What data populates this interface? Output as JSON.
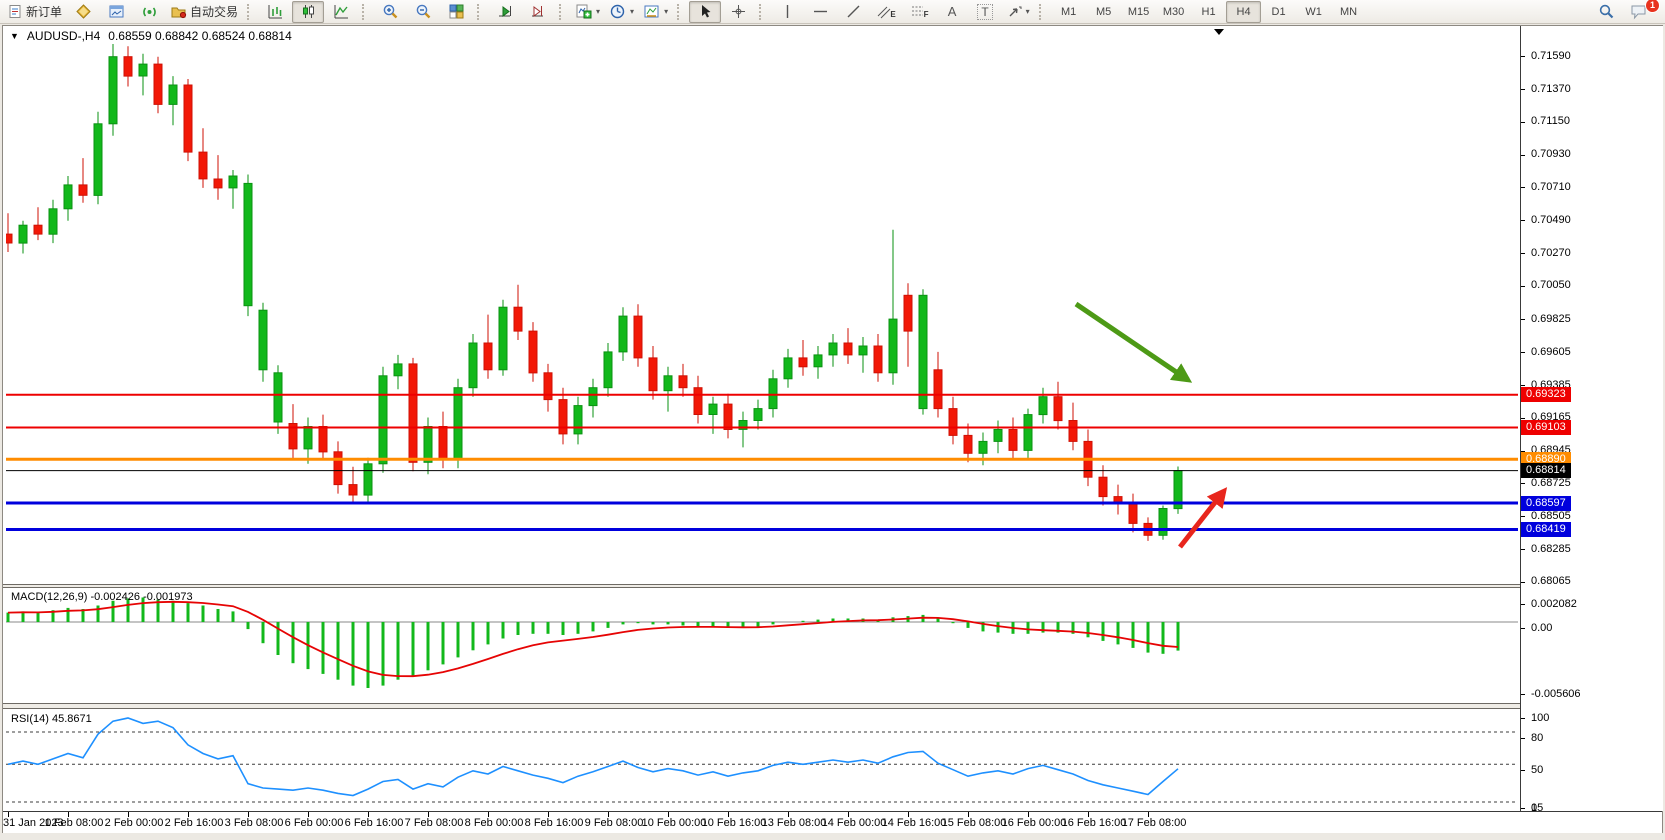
{
  "toolbar": {
    "new_order": "新订单",
    "autotrading": "自动交易",
    "timeframes": [
      "M1",
      "M5",
      "M15",
      "M30",
      "H1",
      "H4",
      "D1",
      "W1",
      "MN"
    ],
    "active_timeframe": "H4",
    "notification_badge": "1",
    "glyphs": {
      "dropdown": "▾",
      "title_caret": "▼",
      "text_tool": "A",
      "label_tool": "T",
      "channel": "E",
      "fibonacci": "F"
    }
  },
  "chart": {
    "symbol_period": "AUDUSD-,H4",
    "ohlc_line": "0.68559 0.68842 0.68524 0.68814",
    "macd_label": "MACD(12,26,9) -0.002426 -0.001973",
    "rsi_label": "RSI(14) 45.8671"
  },
  "chart_data": {
    "type": "candlestick",
    "symbol": "AUDUSD-",
    "timeframe": "H4",
    "bar_spacing": 15,
    "price_axis": {
      "top": 0.71675,
      "bottom": 0.68047,
      "ticks": [
        "0.71590",
        "0.71370",
        "0.71150",
        "0.70930",
        "0.70710",
        "0.70490",
        "0.70270",
        "0.70050",
        "0.69825",
        "0.69605",
        "0.69385",
        "0.69165",
        "0.68945",
        "0.68725",
        "0.68505",
        "0.68285",
        "0.68065"
      ]
    },
    "candles": [
      [
        0.704,
        0.7054,
        0.7028,
        0.7034
      ],
      [
        0.7034,
        0.7049,
        0.7027,
        0.7046
      ],
      [
        0.7046,
        0.7058,
        0.7036,
        0.704
      ],
      [
        0.704,
        0.7063,
        0.7034,
        0.7057
      ],
      [
        0.7057,
        0.7079,
        0.7049,
        0.7073
      ],
      [
        0.7073,
        0.7091,
        0.7061,
        0.7066
      ],
      [
        0.7066,
        0.7122,
        0.706,
        0.7114
      ],
      [
        0.7114,
        0.717,
        0.7106,
        0.7159
      ],
      [
        0.7159,
        0.7166,
        0.7139,
        0.7146
      ],
      [
        0.7146,
        0.7161,
        0.7133,
        0.7154
      ],
      [
        0.7154,
        0.7159,
        0.7121,
        0.7127
      ],
      [
        0.7127,
        0.7146,
        0.7113,
        0.714
      ],
      [
        0.714,
        0.7144,
        0.7089,
        0.7095
      ],
      [
        0.7095,
        0.7111,
        0.7071,
        0.7077
      ],
      [
        0.7077,
        0.7093,
        0.7063,
        0.7071
      ],
      [
        0.7071,
        0.7083,
        0.7057,
        0.7079
      ],
      [
        0.6992,
        0.708,
        0.6985,
        0.7074
      ],
      [
        0.6949,
        0.6994,
        0.6941,
        0.6989
      ],
      [
        0.6914,
        0.6952,
        0.6906,
        0.6947
      ],
      [
        0.6913,
        0.6926,
        0.6889,
        0.6896
      ],
      [
        0.6896,
        0.6917,
        0.6886,
        0.6911
      ],
      [
        0.6911,
        0.6919,
        0.6889,
        0.6894
      ],
      [
        0.6894,
        0.6901,
        0.6866,
        0.6872
      ],
      [
        0.6872,
        0.6884,
        0.6859,
        0.6865
      ],
      [
        0.6865,
        0.689,
        0.686,
        0.6886
      ],
      [
        0.6886,
        0.6951,
        0.688,
        0.6945
      ],
      [
        0.6945,
        0.6959,
        0.6936,
        0.6953
      ],
      [
        0.6953,
        0.6957,
        0.6881,
        0.6887
      ],
      [
        0.6887,
        0.6917,
        0.6879,
        0.6911
      ],
      [
        0.6911,
        0.6921,
        0.6883,
        0.6889
      ],
      [
        0.6889,
        0.6943,
        0.6883,
        0.6937
      ],
      [
        0.6937,
        0.6973,
        0.6931,
        0.6967
      ],
      [
        0.6967,
        0.6986,
        0.6943,
        0.6949
      ],
      [
        0.6949,
        0.6996,
        0.6945,
        0.6991
      ],
      [
        0.6991,
        0.7006,
        0.6969,
        0.6975
      ],
      [
        0.6975,
        0.6981,
        0.6941,
        0.6947
      ],
      [
        0.6947,
        0.6953,
        0.6921,
        0.6929
      ],
      [
        0.6929,
        0.6937,
        0.6899,
        0.6906
      ],
      [
        0.6906,
        0.6931,
        0.6899,
        0.6925
      ],
      [
        0.6925,
        0.6943,
        0.6917,
        0.6937
      ],
      [
        0.6937,
        0.6967,
        0.6931,
        0.6961
      ],
      [
        0.6961,
        0.6991,
        0.6955,
        0.6985
      ],
      [
        0.6985,
        0.6993,
        0.6951,
        0.6957
      ],
      [
        0.6957,
        0.6965,
        0.6929,
        0.6935
      ],
      [
        0.6935,
        0.6951,
        0.6921,
        0.6945
      ],
      [
        0.6945,
        0.6953,
        0.6931,
        0.6937
      ],
      [
        0.6937,
        0.6945,
        0.6913,
        0.6919
      ],
      [
        0.6919,
        0.6931,
        0.6906,
        0.6926
      ],
      [
        0.6926,
        0.6933,
        0.6903,
        0.6909
      ],
      [
        0.6909,
        0.6921,
        0.6897,
        0.6915
      ],
      [
        0.6915,
        0.6929,
        0.6909,
        0.6923
      ],
      [
        0.6923,
        0.6949,
        0.6917,
        0.6943
      ],
      [
        0.6943,
        0.6963,
        0.6937,
        0.6957
      ],
      [
        0.6957,
        0.6969,
        0.6945,
        0.6951
      ],
      [
        0.6951,
        0.6965,
        0.6943,
        0.6959
      ],
      [
        0.6959,
        0.6973,
        0.6951,
        0.6967
      ],
      [
        0.6967,
        0.6977,
        0.6953,
        0.6959
      ],
      [
        0.6959,
        0.6971,
        0.6947,
        0.6965
      ],
      [
        0.6965,
        0.6973,
        0.6941,
        0.6947
      ],
      [
        0.6947,
        0.7043,
        0.6939,
        0.6983
      ],
      [
        0.6999,
        0.7007,
        0.6951,
        0.6975
      ],
      [
        0.6923,
        0.7003,
        0.6919,
        0.6999
      ],
      [
        0.6949,
        0.6961,
        0.6917,
        0.6923
      ],
      [
        0.6923,
        0.6931,
        0.6899,
        0.6905
      ],
      [
        0.6905,
        0.6913,
        0.6887,
        0.6893
      ],
      [
        0.6893,
        0.6907,
        0.6885,
        0.6901
      ],
      [
        0.6901,
        0.6915,
        0.6893,
        0.6909
      ],
      [
        0.6909,
        0.6917,
        0.6889,
        0.6895
      ],
      [
        0.6895,
        0.6923,
        0.6889,
        0.6919
      ],
      [
        0.6919,
        0.6937,
        0.6913,
        0.6931
      ],
      [
        0.6931,
        0.6941,
        0.6909,
        0.6915
      ],
      [
        0.6915,
        0.6927,
        0.6895,
        0.6901
      ],
      [
        0.6901,
        0.6909,
        0.6871,
        0.6877
      ],
      [
        0.6877,
        0.6885,
        0.6858,
        0.6864
      ],
      [
        0.6864,
        0.6872,
        0.6852,
        0.686
      ],
      [
        0.686,
        0.6866,
        0.684,
        0.6846
      ],
      [
        0.6846,
        0.685,
        0.68343,
        0.6838
      ],
      [
        0.6838,
        0.6858,
        0.6835,
        0.6856
      ],
      [
        0.68559,
        0.68842,
        0.68524,
        0.68814
      ]
    ],
    "levels": [
      {
        "price": 0.69323,
        "label": "0.69323",
        "color": "#ee0000",
        "width": 2,
        "type": "resistance-1"
      },
      {
        "price": 0.69103,
        "label": "0.69103",
        "color": "#ee0000",
        "width": 2,
        "type": "resistance-2"
      },
      {
        "price": 0.6889,
        "label": "0.68890",
        "color": "#ff8c00",
        "width": 3,
        "type": "pivot"
      },
      {
        "price": 0.68814,
        "label": "0.68814",
        "color": "#000000",
        "width": 1,
        "type": "last-price"
      },
      {
        "price": 0.68597,
        "label": "0.68597",
        "color": "#0000dd",
        "width": 3,
        "type": "support-1"
      },
      {
        "price": 0.68419,
        "label": "0.68419",
        "color": "#0000dd",
        "width": 3,
        "type": "support-2"
      }
    ],
    "annotations": [
      {
        "type": "arrow",
        "name": "downtrend-arrow",
        "color": "#4d9a16",
        "from": [
          1076,
          304
        ],
        "to": [
          1188,
          380
        ]
      },
      {
        "type": "arrow",
        "name": "bounce-arrow",
        "color": "#e8261d",
        "from": [
          1180,
          547
        ],
        "to": [
          1224,
          491
        ]
      }
    ],
    "macd": {
      "params": "12,26,9",
      "current": "-0.002426",
      "signal_current": "-0.001973",
      "axis": [
        "0.002082",
        "0.00",
        "-0.005606"
      ],
      "values": [
        0.0008,
        0.0009,
        0.0008,
        0.001,
        0.0012,
        0.0011,
        0.0014,
        0.0018,
        0.002,
        0.00208,
        0.0019,
        0.0018,
        0.0016,
        0.0014,
        0.0011,
        0.0009,
        -0.0006,
        -0.0018,
        -0.0028,
        -0.0035,
        -0.004,
        -0.0044,
        -0.0049,
        -0.0054,
        -0.0056,
        -0.0054,
        -0.0049,
        -0.0046,
        -0.0041,
        -0.0036,
        -0.003,
        -0.0024,
        -0.0019,
        -0.0014,
        -0.0011,
        -0.001,
        -0.001,
        -0.0011,
        -0.001,
        -0.0008,
        -0.0005,
        -0.0002,
        -0.0001,
        -0.0002,
        -0.0002,
        -0.0003,
        -0.0004,
        -0.0004,
        -0.0005,
        -0.0005,
        -0.0004,
        -0.0002,
        0.0,
        0.0001,
        0.0002,
        0.0003,
        0.0003,
        0.0003,
        0.0002,
        0.0004,
        0.0005,
        0.0006,
        0.0003,
        -0.0001,
        -0.0005,
        -0.0008,
        -0.0009,
        -0.001,
        -0.001,
        -0.0009,
        -0.0009,
        -0.001,
        -0.0013,
        -0.0016,
        -0.0019,
        -0.0022,
        -0.0026,
        -0.0027,
        -0.002426
      ]
    },
    "rsi": {
      "params": "14",
      "current": "45.8671",
      "axis": [
        "100",
        "80",
        "50",
        "15",
        "0"
      ],
      "levels": [
        80,
        50,
        15
      ],
      "values": [
        50,
        53,
        50,
        55,
        60,
        56,
        78,
        90,
        93,
        88,
        90,
        84,
        68,
        60,
        55,
        58,
        32,
        28,
        27,
        26,
        28,
        26,
        23,
        21,
        27,
        34,
        36,
        27,
        32,
        29,
        38,
        44,
        41,
        48,
        44,
        40,
        37,
        33,
        39,
        43,
        48,
        53,
        47,
        43,
        46,
        44,
        40,
        43,
        39,
        42,
        44,
        49,
        52,
        50,
        52,
        54,
        52,
        54,
        51,
        57,
        61,
        62,
        51,
        45,
        39,
        42,
        44,
        41,
        46,
        49,
        45,
        41,
        35,
        31,
        28,
        25,
        22,
        34,
        45.8671
      ]
    },
    "time_labels": [
      "31 Jan 2023",
      "1 Feb 08:00",
      "2 Feb 00:00",
      "2 Feb 16:00",
      "3 Feb 08:00",
      "6 Feb 00:00",
      "6 Feb 16:00",
      "7 Feb 08:00",
      "8 Feb 00:00",
      "8 Feb 16:00",
      "9 Feb 08:00",
      "10 Feb 00:00",
      "10 Feb 16:00",
      "13 Feb 08:00",
      "14 Feb 00:00",
      "14 Feb 16:00",
      "15 Feb 08:00",
      "16 Feb 00:00",
      "16 Feb 16:00",
      "17 Feb 08:00"
    ]
  }
}
